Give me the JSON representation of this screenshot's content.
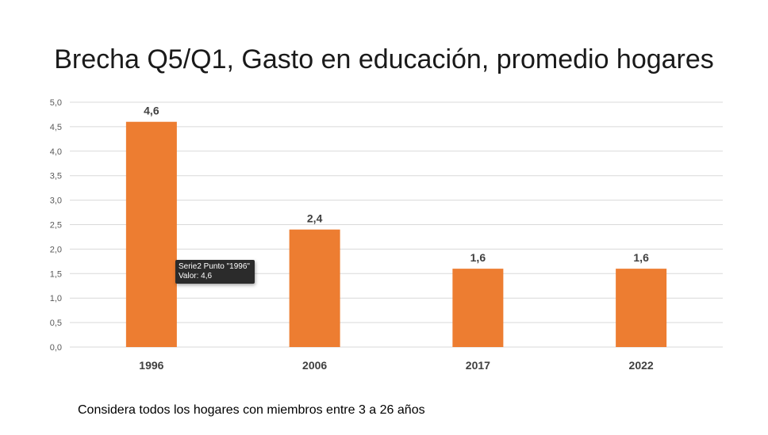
{
  "chart_data": {
    "type": "bar",
    "title": "Brecha Q5/Q1, Gasto en educación, promedio hogares",
    "categories": [
      "1996",
      "2006",
      "2017",
      "2022"
    ],
    "series": [
      {
        "values": [
          4.6,
          2.4,
          1.6,
          1.6
        ],
        "labels": [
          "4,6",
          "2,4",
          "1,6",
          "1,6"
        ],
        "color": "#ED7D31"
      }
    ],
    "ylim": [
      0,
      5
    ],
    "yticks": [
      "0,0",
      "0,5",
      "1,0",
      "1,5",
      "2,0",
      "2,5",
      "3,0",
      "3,5",
      "4,0",
      "4,5",
      "5,0"
    ],
    "grid": true,
    "gridColor": "#d9d9d9",
    "xlabel": "",
    "ylabel": ""
  },
  "tooltip": {
    "line1": "Serie2 Punto \"1996\"",
    "line2": "Valor: 4,6"
  },
  "footnote": "Considera todos los hogares con miembros entre 3 a 26 años"
}
